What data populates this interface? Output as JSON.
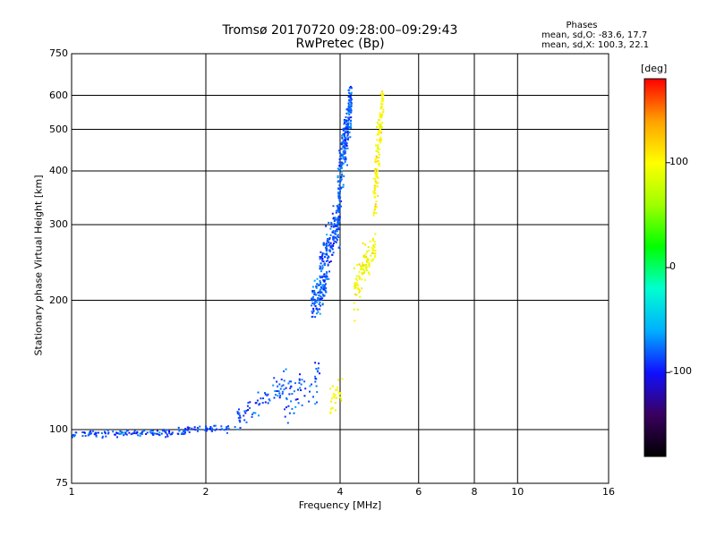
{
  "header": {
    "title_line1": "Tromsø 20170720 09:28:00–09:29:43",
    "title_line2": "RwPretec (Bp)"
  },
  "phase_stats": {
    "heading": "Phases",
    "line_o": "mean, sd,O: -83.6, 17.7",
    "line_x": "mean, sd,X: 100.3, 22.1"
  },
  "chart_data": {
    "type": "scatter",
    "xlabel": "Frequency [MHz]",
    "ylabel": "Stationary phase Virtual Height [km]",
    "x_scale": "log",
    "y_scale": "log",
    "xlim": [
      1,
      16
    ],
    "ylim": [
      75,
      750
    ],
    "x_ticks": [
      "1",
      "2",
      "4",
      "6",
      "8",
      "10",
      "16"
    ],
    "x_tick_values": [
      1,
      2,
      4,
      6,
      8,
      10,
      16
    ],
    "y_ticks": [
      "75",
      "100",
      "200",
      "300",
      "400",
      "500",
      "600",
      "750"
    ],
    "y_tick_values": [
      75,
      100,
      200,
      300,
      400,
      500,
      600,
      750
    ],
    "grid": true,
    "colorbar": {
      "unit": "[deg]",
      "ticks": [
        "100",
        "0",
        "-100"
      ],
      "tick_values": [
        100,
        0,
        -100
      ],
      "range": [
        -180,
        180
      ],
      "colors": [
        "#000000",
        "#3a0060",
        "#1010ff",
        "#00b0ff",
        "#00ffd0",
        "#00ff00",
        "#a0ff00",
        "#ffff00",
        "#ffa000",
        "#ff0000"
      ]
    },
    "series": [
      {
        "mode": "O",
        "phase_mean": -83.6,
        "segments": [
          {
            "f_min": 1.0,
            "f_max": 1.8,
            "h_start": 97,
            "h_end": 99,
            "spread": 1.5,
            "count": 130
          },
          {
            "f_min": 1.8,
            "f_max": 2.35,
            "h_start": 100,
            "h_end": 101,
            "spread": 1.5,
            "count": 45
          },
          {
            "f_min": 2.35,
            "f_max": 3.0,
            "h_start": 103,
            "h_end": 130,
            "spread": 6,
            "count": 70
          },
          {
            "f_min": 3.0,
            "f_max": 3.6,
            "h_start": 115,
            "h_end": 135,
            "spread": 12,
            "count": 60
          },
          {
            "f_min": 3.45,
            "f_max": 3.75,
            "h_start": 185,
            "h_end": 230,
            "spread": 15,
            "count": 120
          },
          {
            "f_min": 3.6,
            "f_max": 4.0,
            "h_start": 210,
            "h_end": 330,
            "spread": 25,
            "count": 180
          },
          {
            "f_min": 3.95,
            "f_max": 4.25,
            "h_start": 300,
            "h_end": 640,
            "spread": 40,
            "count": 260
          }
        ]
      },
      {
        "mode": "X",
        "phase_mean": 100.3,
        "segments": [
          {
            "f_min": 3.8,
            "f_max": 4.05,
            "h_start": 112,
            "h_end": 125,
            "spread": 8,
            "count": 30
          },
          {
            "f_min": 4.3,
            "f_max": 4.8,
            "h_start": 200,
            "h_end": 280,
            "spread": 20,
            "count": 110
          },
          {
            "f_min": 4.75,
            "f_max": 5.0,
            "h_start": 270,
            "h_end": 640,
            "spread": 35,
            "count": 140
          }
        ]
      }
    ]
  }
}
